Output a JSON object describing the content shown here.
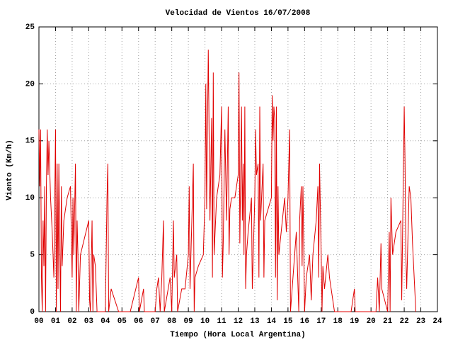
{
  "chart_data": {
    "type": "line",
    "title": "Velocidad de Vientos 16/07/2008",
    "x_label": "Tiempo (Hora Local Argentina)",
    "y_label": "Viento (Km/h)",
    "color": "#e00000",
    "grid": true,
    "xlim": [
      0,
      24
    ],
    "ylim": [
      0,
      25
    ],
    "xticks": [
      {
        "value": 0,
        "label": "00"
      },
      {
        "value": 1,
        "label": "01"
      },
      {
        "value": 2,
        "label": "02"
      },
      {
        "value": 3,
        "label": "03"
      },
      {
        "value": 4,
        "label": "04"
      },
      {
        "value": 5,
        "label": "05"
      },
      {
        "value": 6,
        "label": "06"
      },
      {
        "value": 7,
        "label": "07"
      },
      {
        "value": 8,
        "label": "08"
      },
      {
        "value": 9,
        "label": "09"
      },
      10,
      11,
      12,
      13,
      14,
      15,
      16,
      17,
      18,
      19,
      20,
      21,
      22,
      23,
      24
    ],
    "yticks": [
      0,
      5,
      10,
      15,
      20,
      25
    ],
    "x": [
      0.0,
      0.05,
      0.1,
      0.15,
      0.2,
      0.25,
      0.3,
      0.35,
      0.4,
      0.45,
      0.5,
      0.55,
      0.6,
      0.7,
      0.8,
      0.9,
      1.0,
      1.05,
      1.1,
      1.15,
      1.2,
      1.3,
      1.35,
      1.4,
      1.5,
      1.7,
      1.9,
      2.0,
      2.05,
      2.1,
      2.2,
      2.25,
      2.3,
      2.35,
      2.4,
      2.5,
      3.0,
      3.05,
      3.1,
      3.2,
      3.25,
      3.3,
      3.4,
      3.5,
      3.6,
      4.0,
      4.1,
      4.15,
      4.2,
      4.35,
      4.8,
      5.5,
      6.0,
      6.05,
      6.3,
      6.35,
      7.0,
      7.1,
      7.2,
      7.3,
      7.4,
      7.5,
      7.55,
      7.9,
      8.0,
      8.1,
      8.15,
      8.3,
      8.35,
      8.6,
      8.8,
      9.0,
      9.05,
      9.1,
      9.3,
      9.35,
      9.4,
      9.6,
      9.9,
      10.0,
      10.05,
      10.1,
      10.2,
      10.3,
      10.4,
      10.45,
      10.5,
      10.55,
      10.7,
      10.9,
      11.0,
      11.05,
      11.1,
      11.2,
      11.3,
      11.4,
      11.45,
      11.5,
      11.6,
      11.8,
      12.0,
      12.05,
      12.1,
      12.2,
      12.25,
      12.3,
      12.35,
      12.4,
      12.45,
      12.5,
      12.6,
      12.8,
      12.85,
      13.0,
      13.05,
      13.1,
      13.2,
      13.25,
      13.3,
      13.35,
      13.5,
      13.55,
      13.6,
      14.0,
      14.05,
      14.1,
      14.15,
      14.2,
      14.25,
      14.3,
      14.35,
      14.4,
      14.45,
      14.8,
      14.9,
      15.0,
      15.1,
      15.15,
      15.3,
      15.5,
      15.65,
      15.7,
      15.8,
      15.85,
      15.9,
      16.0,
      16.1,
      16.3,
      16.4,
      16.5,
      16.7,
      16.8,
      16.85,
      16.9,
      17.0,
      17.05,
      17.1,
      17.2,
      17.4,
      17.5,
      17.8,
      18.0,
      18.8,
      19.0,
      19.05,
      20.3,
      20.4,
      20.5,
      20.6,
      20.65,
      21.0,
      21.1,
      21.15,
      21.2,
      21.3,
      21.5,
      21.8,
      21.85,
      22.0,
      22.05,
      22.1,
      22.15,
      22.3,
      22.4,
      22.5,
      22.6,
      22.7
    ],
    "values": [
      16,
      11,
      16,
      3,
      0,
      8,
      4,
      11,
      0,
      11,
      16,
      12,
      15,
      10,
      7,
      3,
      16,
      0,
      13,
      2,
      13,
      0,
      11,
      4,
      8,
      10,
      11,
      3,
      10,
      5,
      13,
      0,
      8,
      5,
      0,
      5,
      8,
      1,
      0,
      8,
      0,
      5,
      4,
      0,
      0,
      0,
      10,
      13,
      0,
      2,
      0,
      0,
      3,
      0,
      2,
      0,
      0,
      2,
      3,
      0,
      3,
      8,
      0,
      3,
      0,
      8,
      3,
      5,
      0,
      2,
      2,
      5,
      11,
      2,
      13,
      0,
      3,
      4,
      5,
      10,
      20,
      9,
      23,
      8,
      17,
      3,
      21,
      5,
      10,
      12,
      18,
      3,
      6,
      16,
      8,
      18,
      5,
      9,
      10,
      10,
      12,
      21,
      6,
      18,
      8,
      13,
      5,
      18,
      2,
      5,
      7,
      10,
      2,
      10,
      16,
      12,
      13,
      3,
      18,
      8,
      13,
      3,
      8,
      10,
      19,
      15,
      18,
      17,
      3,
      18,
      1,
      11,
      5,
      10,
      7,
      10,
      16,
      0,
      3,
      7,
      0,
      8,
      11,
      4,
      11,
      0,
      3,
      5,
      1,
      5,
      8,
      11,
      3,
      13,
      5,
      0,
      4,
      2,
      5,
      3,
      0,
      0,
      0,
      2,
      0,
      0,
      3,
      0,
      6,
      2,
      0,
      7,
      0,
      10,
      5,
      7,
      8,
      1,
      18,
      13,
      5,
      2,
      11,
      10,
      6,
      3,
      0
    ]
  }
}
